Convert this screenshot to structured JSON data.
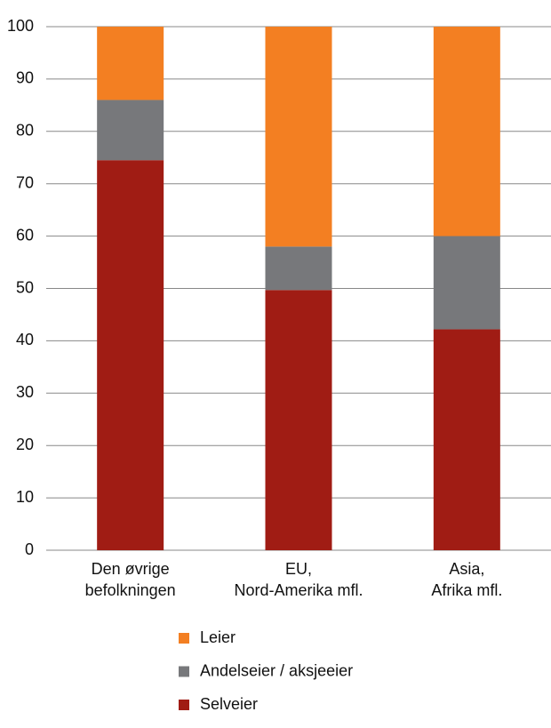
{
  "chart_data": {
    "type": "stacked_bar",
    "categories": [
      [
        "Den øvrige",
        "befolkningen"
      ],
      [
        "EU,",
        "Nord-Amerika mfl."
      ],
      [
        "Asia,",
        "Afrika mfl."
      ]
    ],
    "series": [
      {
        "name": "Selveier",
        "color": "#a01c14",
        "values": [
          74.5,
          49.7,
          42.2
        ]
      },
      {
        "name": "Andelseier / aksjeeier",
        "color": "#77787b",
        "values": [
          11.5,
          8.3,
          17.8
        ]
      },
      {
        "name": "Leier",
        "color": "#f37f22",
        "values": [
          14,
          42,
          40
        ]
      }
    ],
    "ylim": [
      0,
      100
    ],
    "yticks": [
      0,
      10,
      20,
      30,
      40,
      50,
      60,
      70,
      80,
      90,
      100
    ],
    "grid": true
  }
}
